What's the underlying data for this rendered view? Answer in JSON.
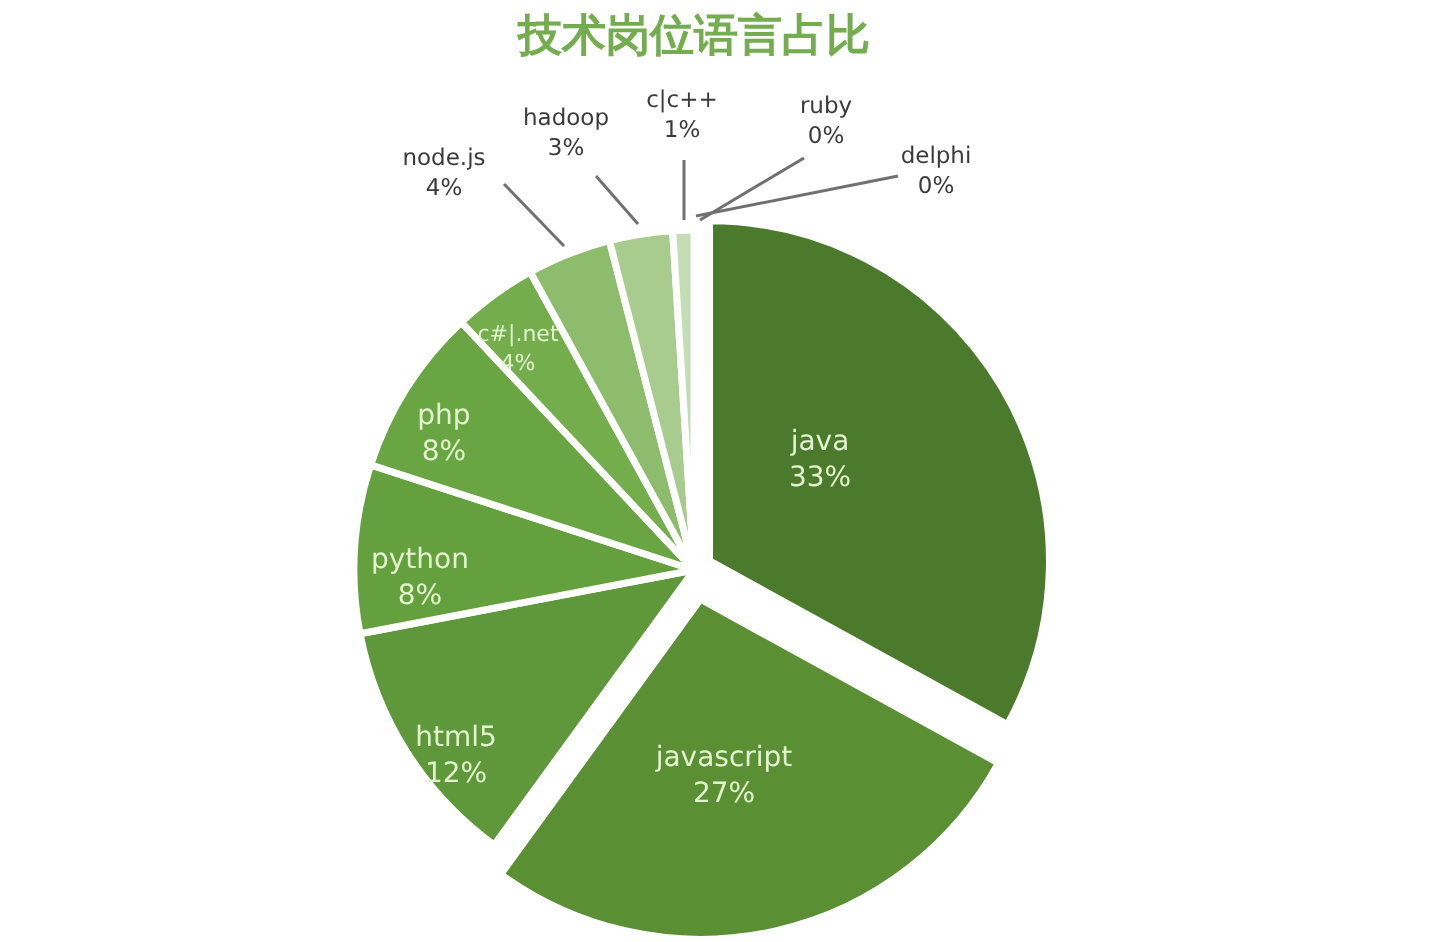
{
  "chart_data": {
    "type": "pie",
    "title": "技术岗位语言占比",
    "categories": [
      "java",
      "javascript",
      "html5",
      "python",
      "php",
      "c#|.net",
      "node.js",
      "hadoop",
      "c|c++",
      "ruby",
      "delphi"
    ],
    "values": [
      33,
      27,
      12,
      8,
      8,
      4,
      4,
      3,
      1,
      0,
      0
    ],
    "value_labels": [
      "33%",
      "27%",
      "12%",
      "8%",
      "8%",
      "4%",
      "4%",
      "3%",
      "1%",
      "0%",
      "0%"
    ],
    "colors": [
      "#4b7a2c",
      "#5a8f34",
      "#5e983a",
      "#64a03e",
      "#69a643",
      "#73ad4c",
      "#8dbd6c",
      "#a7cc8e",
      "#c5ddb5",
      null,
      null
    ]
  }
}
